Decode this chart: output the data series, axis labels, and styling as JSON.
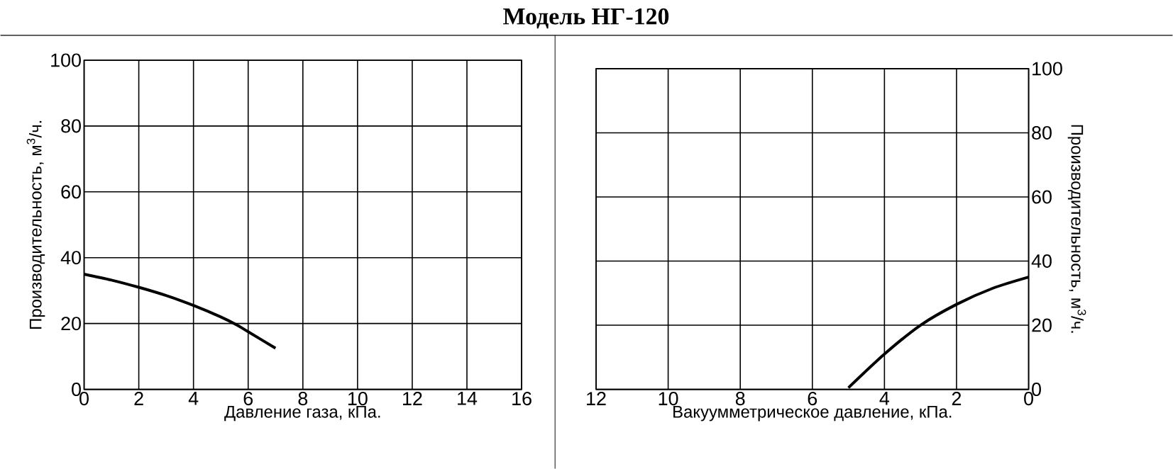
{
  "chart_data": [
    {
      "type": "line",
      "title": "Модель НГ-120",
      "xlabel": "Давление газа, кПа.",
      "ylabel": "Производительность, м$^{3}$/ч.",
      "color": "#000000",
      "line_style": "solid",
      "marker": "none",
      "grid": true,
      "x": [
        0,
        1,
        2,
        3,
        4,
        5,
        5.6,
        6,
        7
      ],
      "values": [
        35,
        33.2,
        31,
        28.5,
        25.5,
        22,
        19.5,
        17.5,
        12.5
      ],
      "xlim": [
        0,
        16
      ],
      "xticks": [
        0,
        2,
        4,
        6,
        8,
        10,
        12,
        14,
        16
      ],
      "ylim": [
        0,
        100
      ],
      "yticks": [
        0,
        20,
        40,
        60,
        80,
        100
      ]
    },
    {
      "type": "line",
      "xlabel": "Вакуумметрическое давление, кПа.",
      "ylabel": "Производительность, м$^{3}$/ч.",
      "color": "#000000",
      "line_style": "solid",
      "marker": "none",
      "grid": true,
      "x": [
        0,
        1,
        2,
        3,
        4,
        5
      ],
      "values": [
        35,
        31.5,
        26.5,
        20,
        11,
        0.5
      ],
      "xlim": [
        12,
        0
      ],
      "xticks": [
        12,
        10,
        8,
        6,
        4,
        2,
        0
      ],
      "ylim": [
        0,
        100
      ],
      "yticks": [
        0,
        20,
        40,
        60,
        80,
        100
      ]
    }
  ]
}
